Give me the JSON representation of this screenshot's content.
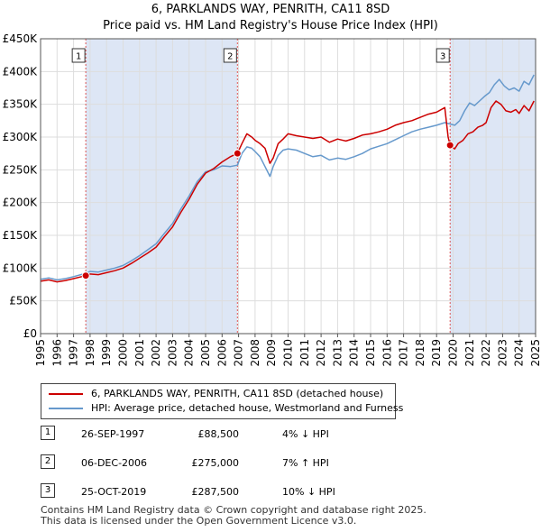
{
  "title": {
    "line1": "6, PARKLANDS WAY, PENRITH, CA11 8SD",
    "line2": "Price paid vs. HM Land Registry's House Price Index (HPI)"
  },
  "legend": {
    "property": "6, PARKLANDS WAY, PENRITH, CA11 8SD (detached house)",
    "hpi": "HPI: Average price, detached house, Westmorland and Furness"
  },
  "colors": {
    "property": "#cc0000",
    "hpi": "#6699cc",
    "shade": "#dde6f5",
    "grid": "#dddddd",
    "marker_line": "#dd5555"
  },
  "sales": [
    {
      "num": "1",
      "date": "26-SEP-1997",
      "price": "£88,500",
      "hpi": "4% ↓ HPI"
    },
    {
      "num": "2",
      "date": "06-DEC-2006",
      "price": "£275,000",
      "hpi": "7% ↑ HPI"
    },
    {
      "num": "3",
      "date": "25-OCT-2019",
      "price": "£287,500",
      "hpi": "10% ↓ HPI"
    }
  ],
  "footer": {
    "line1": "Contains HM Land Registry data © Crown copyright and database right 2025.",
    "line2": "This data is licensed under the Open Government Licence v3.0."
  },
  "chart_data": {
    "type": "line",
    "title": "6, PARKLANDS WAY, PENRITH, CA11 8SD — Price paid vs. HM Land Registry's House Price Index (HPI)",
    "xlabel": "",
    "ylabel": "",
    "xlim": [
      1995,
      2025
    ],
    "ylim": [
      0,
      450000
    ],
    "y_ticks": [
      0,
      50000,
      100000,
      150000,
      200000,
      250000,
      300000,
      350000,
      400000,
      450000
    ],
    "y_tick_labels": [
      "£0",
      "£50K",
      "£100K",
      "£150K",
      "£200K",
      "£250K",
      "£300K",
      "£350K",
      "£400K",
      "£450K"
    ],
    "x_ticks": [
      1995,
      1996,
      1997,
      1998,
      1999,
      2000,
      2001,
      2002,
      2003,
      2004,
      2005,
      2006,
      2007,
      2008,
      2009,
      2010,
      2011,
      2012,
      2013,
      2014,
      2015,
      2016,
      2017,
      2018,
      2019,
      2020,
      2021,
      2022,
      2023,
      2024,
      2025
    ],
    "grid": true,
    "legend_position": "below",
    "shaded_periods": [
      [
        1997.74,
        2006.93
      ],
      [
        2019.82,
        2025.0
      ]
    ],
    "sale_markers": [
      {
        "label": "1",
        "x": 1997.74,
        "y": 88500
      },
      {
        "label": "2",
        "x": 2006.93,
        "y": 275000
      },
      {
        "label": "3",
        "x": 2019.82,
        "y": 287500
      }
    ],
    "series": [
      {
        "name": "6, PARKLANDS WAY, PENRITH, CA11 8SD (detached house)",
        "x": [
          1995,
          1995.5,
          1996,
          1996.5,
          1997,
          1997.74,
          1998,
          1998.5,
          1999,
          1999.5,
          2000,
          2000.5,
          2001,
          2001.5,
          2002,
          2002.5,
          2003,
          2003.5,
          2004,
          2004.5,
          2005,
          2005.5,
          2006,
          2006.5,
          2006.93,
          2007.2,
          2007.5,
          2007.8,
          2008,
          2008.3,
          2008.6,
          2008.9,
          2009.1,
          2009.4,
          2009.7,
          2010,
          2010.5,
          2011,
          2011.5,
          2012,
          2012.5,
          2013,
          2013.5,
          2014,
          2014.5,
          2015,
          2015.5,
          2016,
          2016.5,
          2017,
          2017.5,
          2018,
          2018.5,
          2019,
          2019.5,
          2019.7,
          2019.82,
          2020.1,
          2020.3,
          2020.6,
          2020.9,
          2021.2,
          2021.5,
          2021.8,
          2022,
          2022.3,
          2022.6,
          2022.9,
          2023.2,
          2023.5,
          2023.8,
          2024,
          2024.3,
          2024.6,
          2024.9
        ],
        "values": [
          80000,
          82000,
          79000,
          81000,
          84000,
          88500,
          91000,
          90000,
          93000,
          96000,
          100000,
          107000,
          115000,
          123000,
          132000,
          148000,
          163000,
          185000,
          205000,
          228000,
          245000,
          252000,
          262000,
          270000,
          275000,
          290000,
          305000,
          300000,
          295000,
          290000,
          283000,
          260000,
          268000,
          290000,
          297000,
          305000,
          302000,
          300000,
          298000,
          300000,
          292000,
          297000,
          294000,
          298000,
          303000,
          305000,
          308000,
          312000,
          318000,
          322000,
          325000,
          330000,
          335000,
          338000,
          345000,
          300000,
          287500,
          282000,
          290000,
          295000,
          305000,
          308000,
          315000,
          318000,
          322000,
          345000,
          355000,
          350000,
          340000,
          338000,
          342000,
          336000,
          348000,
          340000,
          355000
        ]
      },
      {
        "name": "HPI: Average price, detached house, Westmorland and Furness",
        "x": [
          1995,
          1995.5,
          1996,
          1996.5,
          1997,
          1997.74,
          1998,
          1998.5,
          1999,
          1999.5,
          2000,
          2000.5,
          2001,
          2001.5,
          2002,
          2002.5,
          2003,
          2003.5,
          2004,
          2004.5,
          2005,
          2005.5,
          2006,
          2006.5,
          2006.93,
          2007.2,
          2007.5,
          2007.8,
          2008,
          2008.3,
          2008.6,
          2008.9,
          2009.1,
          2009.4,
          2009.7,
          2010,
          2010.5,
          2011,
          2011.5,
          2012,
          2012.5,
          2013,
          2013.5,
          2014,
          2014.5,
          2015,
          2015.5,
          2016,
          2016.5,
          2017,
          2017.5,
          2018,
          2018.5,
          2019,
          2019.5,
          2019.82,
          2020.1,
          2020.4,
          2020.7,
          2021,
          2021.3,
          2021.6,
          2021.9,
          2022.2,
          2022.5,
          2022.8,
          2023.1,
          2023.4,
          2023.7,
          2024,
          2024.3,
          2024.6,
          2024.9
        ],
        "values": [
          83000,
          85000,
          82000,
          84000,
          87000,
          92000,
          95000,
          94000,
          97000,
          100000,
          104000,
          111000,
          119000,
          128000,
          137000,
          153000,
          168000,
          190000,
          210000,
          232000,
          247000,
          250000,
          256000,
          255000,
          257000,
          275000,
          285000,
          283000,
          278000,
          270000,
          255000,
          240000,
          255000,
          272000,
          280000,
          282000,
          280000,
          275000,
          270000,
          272000,
          265000,
          268000,
          266000,
          270000,
          275000,
          282000,
          286000,
          290000,
          296000,
          302000,
          308000,
          312000,
          315000,
          318000,
          322000,
          320000,
          318000,
          325000,
          340000,
          352000,
          348000,
          355000,
          362000,
          368000,
          380000,
          388000,
          378000,
          372000,
          375000,
          370000,
          385000,
          380000,
          395000
        ]
      }
    ]
  }
}
